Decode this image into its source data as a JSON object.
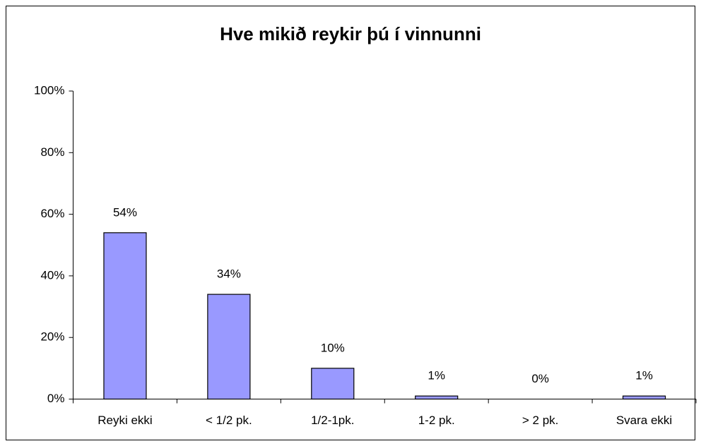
{
  "chart_data": {
    "type": "bar",
    "title": "Hve mikið reykir þú í vinnunni",
    "categories": [
      "Reyki ekki",
      "< 1/2 pk.",
      "1/2-1pk.",
      "1-2 pk.",
      "> 2 pk.",
      "Svara ekki"
    ],
    "values": [
      54,
      34,
      10,
      1,
      0,
      1
    ],
    "value_labels": [
      "54%",
      "34%",
      "10%",
      "1%",
      "0%",
      "1%"
    ],
    "color": "#9999ff",
    "ylim": [
      0,
      100
    ],
    "yticks": [
      {
        "value": 0,
        "label": "0%"
      },
      {
        "value": 20,
        "label": "20%"
      },
      {
        "value": 40,
        "label": "40%"
      },
      {
        "value": 60,
        "label": "60%"
      },
      {
        "value": 80,
        "label": "80%"
      },
      {
        "value": 100,
        "label": "100%"
      }
    ],
    "grid": false
  }
}
